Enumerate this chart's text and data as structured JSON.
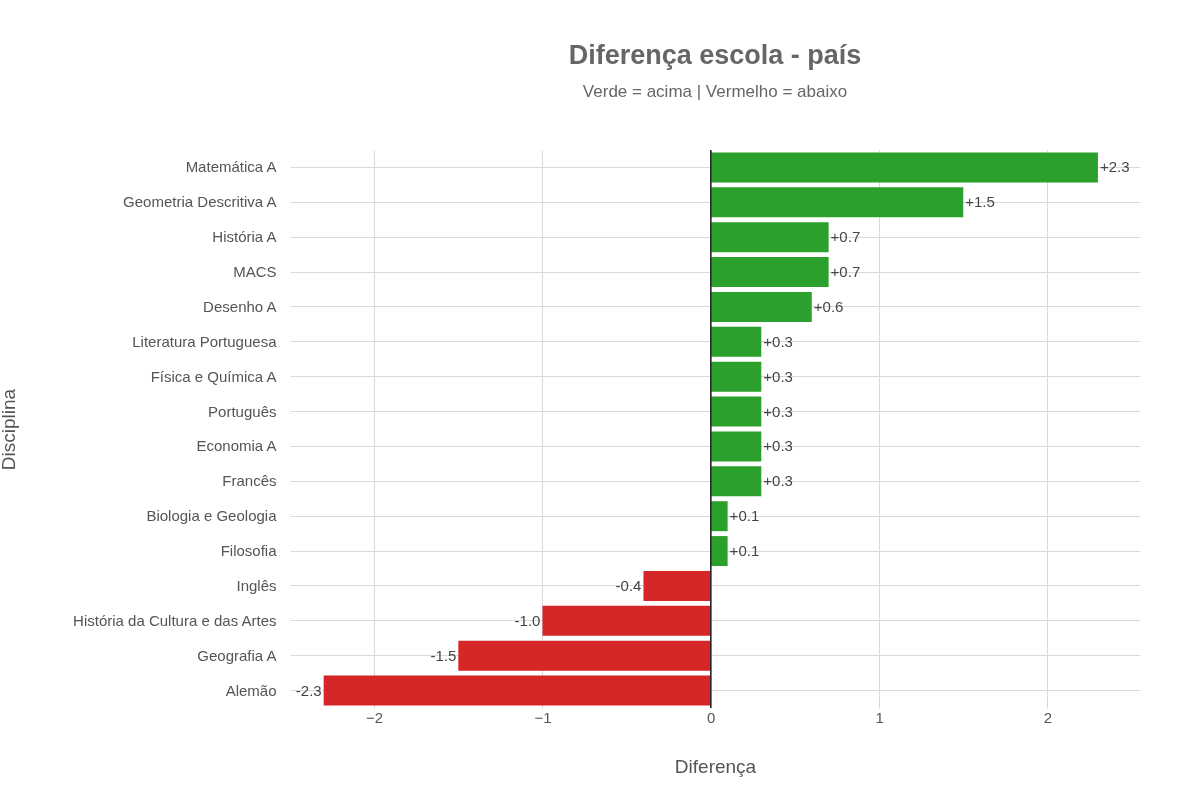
{
  "chart_data": {
    "type": "bar",
    "orientation": "horizontal",
    "title": "Diferença escola - país",
    "subtitle": "Verde = acima | Vermelho = abaixo",
    "xlabel": "Diferença",
    "ylabel": "Disciplina",
    "categories": [
      "Matemática A",
      "Geometria Descritiva A",
      "História A",
      "MACS",
      "Desenho A",
      "Literatura Portuguesa",
      "Física e Química A",
      "Português",
      "Economia A",
      "Francês",
      "Biologia e Geologia",
      "Filosofia",
      "Inglês",
      "História da Cultura e das Artes",
      "Geografia A",
      "Alemão"
    ],
    "values": [
      2.3,
      1.5,
      0.7,
      0.7,
      0.6,
      0.3,
      0.3,
      0.3,
      0.3,
      0.3,
      0.1,
      0.1,
      -0.4,
      -1.0,
      -1.5,
      -2.3
    ],
    "value_labels": [
      "+2.3",
      "+1.5",
      "+0.7",
      "+0.7",
      "+0.6",
      "+0.3",
      "+0.3",
      "+0.3",
      "+0.3",
      "+0.3",
      "+0.1",
      "+0.1",
      "-0.4",
      "-1.0",
      "-1.5",
      "-2.3"
    ],
    "colors": [
      "#2ca02c",
      "#2ca02c",
      "#2ca02c",
      "#2ca02c",
      "#2ca02c",
      "#2ca02c",
      "#2ca02c",
      "#2ca02c",
      "#2ca02c",
      "#2ca02c",
      "#2ca02c",
      "#2ca02c",
      "#d62728",
      "#d62728",
      "#d62728",
      "#d62728"
    ],
    "xlim": [
      -2.5,
      2.55
    ],
    "xticks": [
      {
        "value": -2,
        "label": "−2"
      },
      {
        "value": -1,
        "label": "−1"
      },
      0,
      1,
      2
    ],
    "ref_lines": [
      {
        "axis": "x",
        "value": 0,
        "color": "#222222"
      }
    ],
    "grid": true
  }
}
